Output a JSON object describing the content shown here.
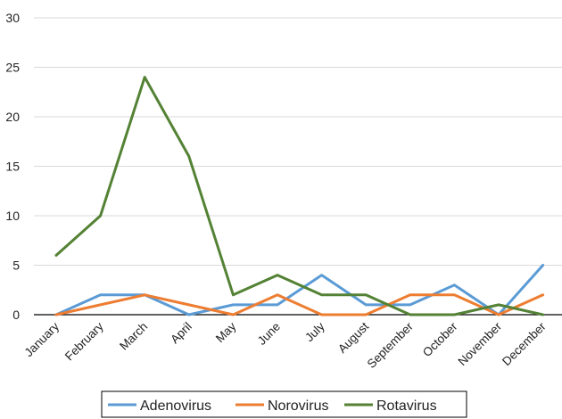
{
  "chart_data": {
    "type": "line",
    "categories": [
      "January",
      "February",
      "March",
      "April",
      "May",
      "June",
      "July",
      "August",
      "September",
      "October",
      "November",
      "December"
    ],
    "series": [
      {
        "name": "Adenovirus",
        "color": "#5b9bd5",
        "values": [
          0,
          2,
          2,
          0,
          1,
          1,
          4,
          1,
          1,
          3,
          0,
          5
        ]
      },
      {
        "name": "Norovirus",
        "color": "#ed7d31",
        "values": [
          0,
          1,
          2,
          1,
          0,
          2,
          0,
          0,
          2,
          2,
          0,
          2
        ]
      },
      {
        "name": "Rotavirus",
        "color": "#548235",
        "values": [
          6,
          10,
          24,
          16,
          2,
          4,
          2,
          2,
          0,
          0,
          1,
          0
        ]
      }
    ],
    "ylim": [
      0,
      30
    ],
    "yticks": [
      0,
      5,
      10,
      15,
      20,
      25,
      30
    ],
    "grid": true,
    "legend": "bottom"
  }
}
